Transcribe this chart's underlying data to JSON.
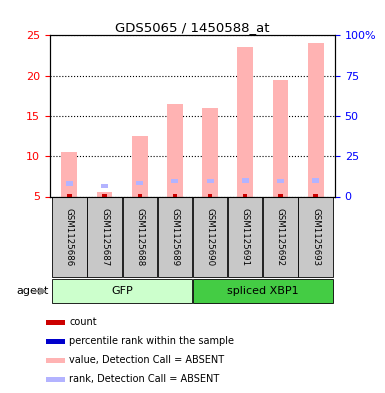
{
  "title": "GDS5065 / 1450588_at",
  "samples": [
    "GSM1125686",
    "GSM1125687",
    "GSM1125688",
    "GSM1125689",
    "GSM1125690",
    "GSM1125691",
    "GSM1125692",
    "GSM1125693"
  ],
  "value_absent": [
    10.5,
    5.5,
    12.5,
    16.5,
    16.0,
    23.5,
    19.5,
    24.0
  ],
  "rank_absent": [
    8.0,
    6.5,
    8.5,
    9.5,
    9.5,
    10.0,
    9.5,
    10.0
  ],
  "ylim_left": [
    5,
    25
  ],
  "ylim_right": [
    0,
    100
  ],
  "yticks_left": [
    5,
    10,
    15,
    20,
    25
  ],
  "yticks_right": [
    0,
    25,
    50,
    75,
    100
  ],
  "ytick_labels_right": [
    "0",
    "25",
    "50",
    "75",
    "100%"
  ],
  "color_value_absent": "#ffb3b3",
  "color_rank_absent": "#b3b3ff",
  "color_count": "#cc0000",
  "color_rank_point": "#0000cc",
  "group_labels": [
    "GFP",
    "spliced XBP1"
  ],
  "group_colors": [
    "#ccffcc",
    "#44cc44"
  ],
  "legend_items": [
    {
      "label": "count",
      "color": "#cc0000"
    },
    {
      "label": "percentile rank within the sample",
      "color": "#0000cc"
    },
    {
      "label": "value, Detection Call = ABSENT",
      "color": "#ffb3b3"
    },
    {
      "label": "rank, Detection Call = ABSENT",
      "color": "#b3b3ff"
    }
  ]
}
